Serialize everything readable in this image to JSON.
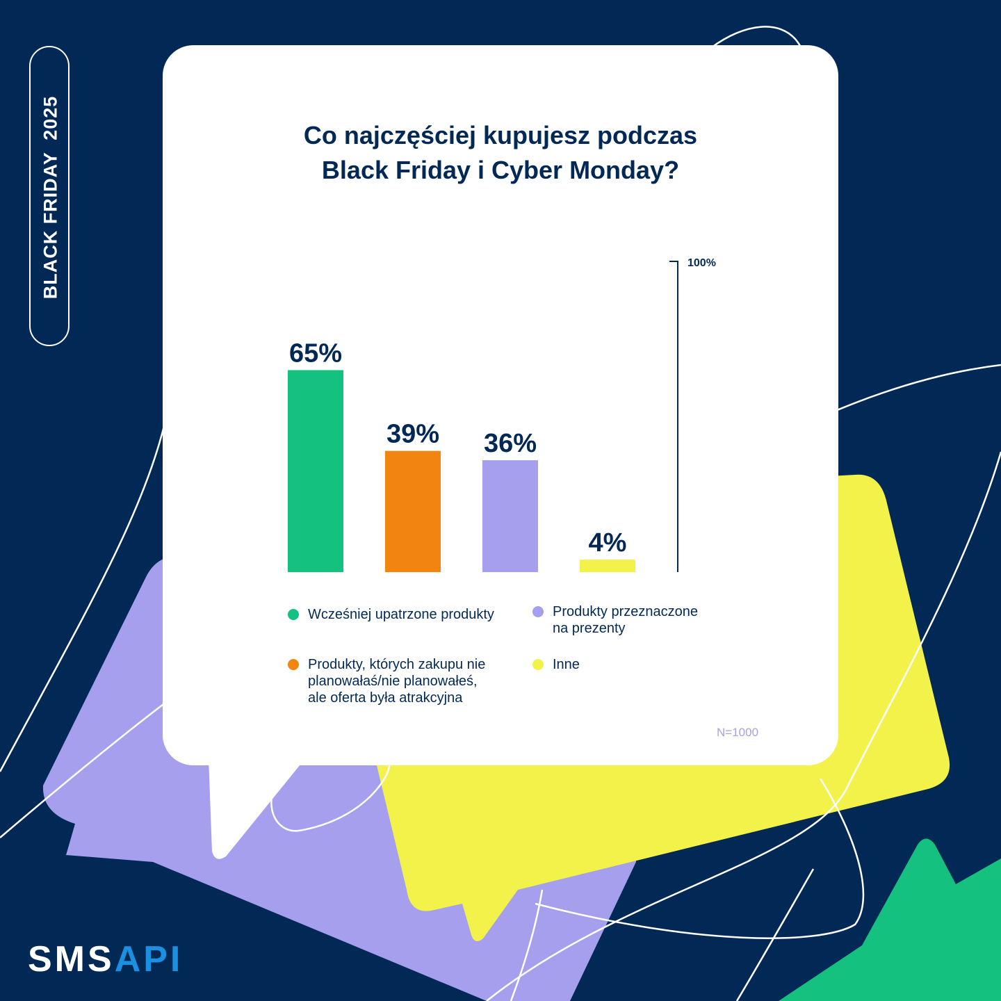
{
  "side_label": "BLACK FRIDAY  2025",
  "title_lines": [
    "Co najczęściej kupujesz podczas",
    "Black Friday i Cyber Monday?"
  ],
  "note": "N=1000",
  "logo": {
    "part1": "SMS",
    "part2": "API"
  },
  "colors": {
    "background": "#022956",
    "card": "#ffffff",
    "text": "#022956",
    "green": "#14c17f",
    "orange": "#f2850f",
    "lavender": "#a59fed",
    "yellow": "#f2f24b",
    "logo_blue": "#1b8fe0"
  },
  "chart_data": {
    "type": "bar",
    "title": "Co najczęściej kupujesz podczas Black Friday i Cyber Monday?",
    "categories": [
      "Wcześniej upatrzone produkty",
      "Produkty, których zakupu nie planowałaś/nie planowałeś, ale oferta była atrakcyjna",
      "Produkty przeznaczone na prezenty",
      "Inne"
    ],
    "values": [
      65,
      39,
      36,
      4
    ],
    "value_labels": [
      "65%",
      "39%",
      "36%",
      "4%"
    ],
    "bar_colors": [
      "#14c17f",
      "#f2850f",
      "#a59fed",
      "#f2f24b"
    ],
    "ylim": [
      0,
      100
    ],
    "scale_label": "100%",
    "grid": false,
    "legend": [
      {
        "lines": [
          "Wcześniej upatrzone produkty"
        ],
        "color": "#14c17f"
      },
      {
        "lines": [
          "Produkty, których zakupu nie",
          "planowałaś/nie planowałeś,",
          "ale oferta była atrakcyjna"
        ],
        "color": "#f2850f"
      },
      {
        "lines": [
          "Produkty przeznaczone",
          "na prezenty"
        ],
        "color": "#a59fed"
      },
      {
        "lines": [
          "Inne"
        ],
        "color": "#f2f24b"
      }
    ]
  }
}
